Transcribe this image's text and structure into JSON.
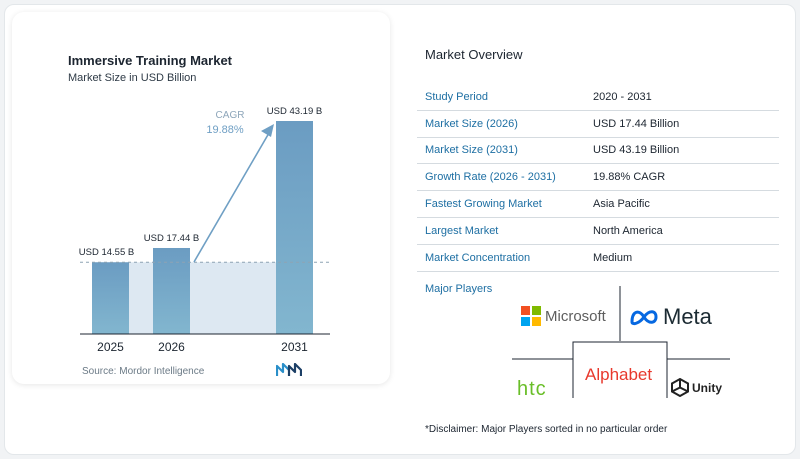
{
  "chart_data": {
    "type": "bar",
    "title": "Immersive Training Market",
    "subtitle": "Market Size in USD Billion",
    "categories": [
      "2025",
      "2026",
      "2031"
    ],
    "values": [
      14.55,
      17.44,
      43.19
    ],
    "data_labels": [
      "USD 14.55 B",
      "USD 17.44 B",
      "USD 43.19 B"
    ],
    "ylim": [
      0,
      43.19
    ],
    "cagr_label": "CAGR",
    "cagr_value": "19.88%",
    "bar_color": "#6f9fc4",
    "band_color": "#dde8f2"
  },
  "source": "Source: Mordor Intelligence",
  "overview": {
    "title": "Market Overview",
    "rows": [
      {
        "label": "Study Period",
        "value": "2020 - 2031"
      },
      {
        "label": "Market Size (2026)",
        "value": "USD 17.44 Billion"
      },
      {
        "label": "Market Size (2031)",
        "value": "USD 43.19 Billion"
      },
      {
        "label": "Growth Rate (2026 - 2031)",
        "value": "19.88% CAGR"
      },
      {
        "label": "Fastest Growing Market",
        "value": "Asia Pacific"
      },
      {
        "label": "Largest Market",
        "value": "North America"
      },
      {
        "label": "Market Concentration",
        "value": "Medium"
      }
    ]
  },
  "players": {
    "title": "Major Players",
    "logos": [
      "Microsoft",
      "Meta",
      "Alphabet",
      "htc",
      "Unity"
    ]
  },
  "disclaimer": "*Disclaimer: Major Players sorted in no particular order",
  "colors": {
    "accent": "#1e6fa3",
    "bar": "#6f9fc4"
  }
}
